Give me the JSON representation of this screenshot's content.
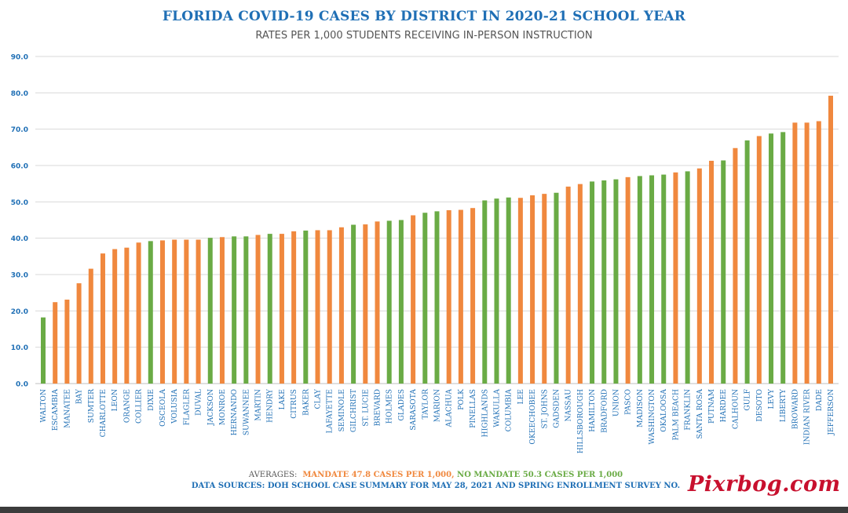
{
  "title": "FLORIDA COVID-19 CASES BY DISTRICT IN 2020-21 SCHOOL YEAR",
  "subtitle": "RATES PER 1,000 STUDENTS RECEIVING IN-PERSON INSTRUCTION",
  "averages": {
    "label": "AVERAGES:",
    "mandate": "MANDATE 47.8 CASES PER 1,000,",
    "no_mandate": "NO MANDATE 50.3 CASES PER 1,000"
  },
  "sources": "DATA SOURCES: DOH SCHOOL CASE SUMMARY FOR MAY 28, 2021 AND SPRING ENROLLMENT SURVEY NO.",
  "watermark": "Pixrbog.com",
  "colors": {
    "mandate": "#f0883e",
    "no_mandate": "#6aab45",
    "title": "#1f6fb5",
    "tick": "#1f6fb5",
    "grid": "#d9d9d9"
  },
  "chart_data": {
    "type": "bar",
    "title": "FLORIDA COVID-19 CASES BY DISTRICT IN 2020-21 SCHOOL YEAR",
    "subtitle": "RATES PER 1,000 STUDENTS RECEIVING IN-PERSON INSTRUCTION",
    "xlabel": "",
    "ylabel": "",
    "ylim": [
      0,
      90
    ],
    "yticks": [
      "0.0",
      "10.0",
      "20.0",
      "30.0",
      "40.0",
      "50.0",
      "60.0",
      "70.0",
      "80.0",
      "90.0"
    ],
    "grid": true,
    "categories": [
      "WALTON",
      "ESCAMBIA",
      "MANATEE",
      "BAY",
      "SUMTER",
      "CHARLOTTE",
      "LEON",
      "ORANGE",
      "COLLIER",
      "DIXIE",
      "OSCEOLA",
      "VOLUSIA",
      "FLAGLER",
      "DUVAL",
      "JACKSON",
      "MONROE",
      "HERNANDO",
      "SUWANNEE",
      "MARTIN",
      "HENDRY",
      "LAKE",
      "CITRUS",
      "BAKER",
      "CLAY",
      "LAFAYETTE",
      "SEMINOLE",
      "GILCHRIST",
      "ST. LUCIE",
      "BREVARD",
      "HOLMES",
      "GLADES",
      "SARASOTA",
      "TAYLOR",
      "MARION",
      "ALACHUA",
      "POLK",
      "PINELLAS",
      "HIGHLANDS",
      "WAKULLA",
      "COLUMBIA",
      "LEE",
      "OKEECHOBEE",
      "ST. JOHNS",
      "GADSDEN",
      "NASSAU",
      "HILLSBOROUGH",
      "HAMILTON",
      "BRADFORD",
      "UNION",
      "PASCO",
      "MADISON",
      "WASHINGTON",
      "OKALOOSA",
      "PALM BEACH",
      "FRANKLIN",
      "SANTA ROSA",
      "PUTNAM",
      "HARDEE",
      "CALHOUN",
      "GULF",
      "DESOTO",
      "LEVY",
      "LIBERTY",
      "BROWARD",
      "INDIAN RIVER",
      "DADE",
      "JEFFERSON"
    ],
    "values": [
      18.2,
      22.4,
      23.1,
      27.6,
      31.6,
      35.8,
      37.0,
      37.4,
      38.8,
      39.2,
      39.4,
      39.6,
      39.6,
      39.6,
      40.1,
      40.3,
      40.5,
      40.5,
      40.9,
      41.2,
      41.2,
      41.9,
      42.1,
      42.2,
      42.2,
      43.0,
      43.7,
      43.8,
      44.6,
      44.8,
      45.0,
      46.3,
      47.0,
      47.4,
      47.7,
      47.8,
      48.3,
      50.4,
      50.9,
      51.2,
      51.1,
      51.8,
      52.2,
      52.5,
      54.2,
      54.9,
      55.6,
      55.9,
      56.2,
      56.8,
      57.1,
      57.3,
      57.5,
      58.1,
      58.4,
      59.2,
      61.3,
      61.4,
      64.8,
      66.9,
      68.1,
      68.8,
      69.2,
      71.8,
      71.8,
      72.2,
      79.2
    ],
    "groups": [
      "no_mandate",
      "mandate",
      "mandate",
      "mandate",
      "mandate",
      "mandate",
      "mandate",
      "mandate",
      "mandate",
      "no_mandate",
      "mandate",
      "mandate",
      "mandate",
      "mandate",
      "no_mandate",
      "mandate",
      "no_mandate",
      "no_mandate",
      "mandate",
      "no_mandate",
      "mandate",
      "mandate",
      "no_mandate",
      "mandate",
      "mandate",
      "mandate",
      "no_mandate",
      "mandate",
      "mandate",
      "no_mandate",
      "no_mandate",
      "mandate",
      "no_mandate",
      "no_mandate",
      "mandate",
      "mandate",
      "mandate",
      "no_mandate",
      "no_mandate",
      "no_mandate",
      "mandate",
      "mandate",
      "mandate",
      "no_mandate",
      "mandate",
      "mandate",
      "no_mandate",
      "no_mandate",
      "no_mandate",
      "mandate",
      "no_mandate",
      "no_mandate",
      "no_mandate",
      "mandate",
      "no_mandate",
      "mandate",
      "mandate",
      "no_mandate",
      "mandate",
      "no_mandate",
      "mandate",
      "no_mandate",
      "no_mandate",
      "mandate",
      "mandate",
      "mandate",
      "mandate"
    ],
    "legend": [
      {
        "key": "mandate",
        "label": "MANDATE"
      },
      {
        "key": "no_mandate",
        "label": "NO MANDATE"
      }
    ]
  }
}
